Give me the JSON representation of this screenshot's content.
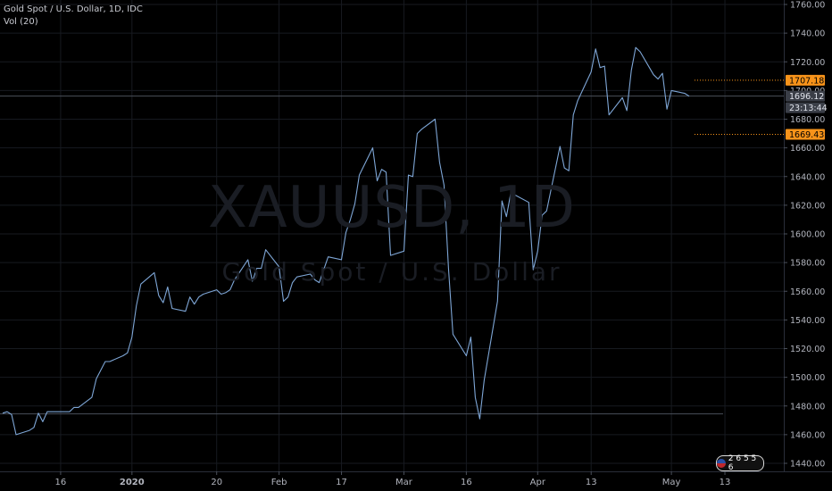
{
  "legend": {
    "title": "Gold Spot / U.S. Dollar, 1D, IDC",
    "indicator": "Vol (20)"
  },
  "watermark": {
    "symbol": "XAUUSD, 1D",
    "description": "Gold Spot / U.S. Dollar"
  },
  "colors": {
    "background": "#000000",
    "line": "#7ea6d6",
    "badge_orange": "#f7931a",
    "price_badge": "#3a3e47",
    "grid": "#171a20"
  },
  "chart_data": {
    "type": "line",
    "title": "Gold Spot / U.S. Dollar, 1D, IDC",
    "xlabel": "",
    "ylabel": "",
    "ylim": [
      1430,
      1765
    ],
    "y_ticks": [
      1440,
      1460,
      1480,
      1500,
      1520,
      1540,
      1560,
      1580,
      1600,
      1620,
      1640,
      1660,
      1680,
      1700,
      1720,
      1740,
      1760
    ],
    "y_tick_labels": [
      "1440.00",
      "1460.00",
      "1480.00",
      "1500.00",
      "1520.00",
      "1540.00",
      "1560.00",
      "1580.00",
      "1600.00",
      "1620.00",
      "1640.00",
      "1660.00",
      "1680.00",
      "1700.00",
      "1720.00",
      "1740.00",
      "1760.00"
    ],
    "x_tick_labels": [
      {
        "label": "16",
        "date": "2019-12-16"
      },
      {
        "label": "2020",
        "date": "2020-01-01"
      },
      {
        "label": "20",
        "date": "2020-01-20"
      },
      {
        "label": "Feb",
        "date": "2020-02-03"
      },
      {
        "label": "17",
        "date": "2020-02-17"
      },
      {
        "label": "Mar",
        "date": "2020-03-02"
      },
      {
        "label": "16",
        "date": "2020-03-16"
      },
      {
        "label": "Apr",
        "date": "2020-04-01"
      },
      {
        "label": "13",
        "date": "2020-04-13"
      },
      {
        "label": "May",
        "date": "2020-05-01"
      },
      {
        "label": "13",
        "date": "2020-05-13"
      }
    ],
    "xlim": [
      "2019-12-03",
      "2020-05-18"
    ],
    "grid": true,
    "legend": "top-left",
    "series": [
      {
        "values": [
          [
            "2019-12-03",
            1475
          ],
          [
            "2019-12-04",
            1476
          ],
          [
            "2019-12-05",
            1474
          ],
          [
            "2019-12-06",
            1460
          ],
          [
            "2019-12-09",
            1463
          ],
          [
            "2019-12-10",
            1465
          ],
          [
            "2019-12-11",
            1475
          ],
          [
            "2019-12-12",
            1469
          ],
          [
            "2019-12-13",
            1476
          ],
          [
            "2019-12-16",
            1476
          ],
          [
            "2019-12-17",
            1476
          ],
          [
            "2019-12-18",
            1476
          ],
          [
            "2019-12-19",
            1479
          ],
          [
            "2019-12-20",
            1479
          ],
          [
            "2019-12-23",
            1486
          ],
          [
            "2019-12-24",
            1499
          ],
          [
            "2019-12-26",
            1511
          ],
          [
            "2019-12-27",
            1511
          ],
          [
            "2019-12-30",
            1515
          ],
          [
            "2019-12-31",
            1517
          ],
          [
            "2020-01-01",
            1528
          ],
          [
            "2020-01-02",
            1550
          ],
          [
            "2020-01-03",
            1565
          ],
          [
            "2020-01-06",
            1573
          ],
          [
            "2020-01-07",
            1557
          ],
          [
            "2020-01-08",
            1552
          ],
          [
            "2020-01-09",
            1563
          ],
          [
            "2020-01-10",
            1548
          ],
          [
            "2020-01-13",
            1546
          ],
          [
            "2020-01-14",
            1556
          ],
          [
            "2020-01-15",
            1551
          ],
          [
            "2020-01-16",
            1556
          ],
          [
            "2020-01-17",
            1558
          ],
          [
            "2020-01-20",
            1561
          ],
          [
            "2020-01-21",
            1558
          ],
          [
            "2020-01-22",
            1559
          ],
          [
            "2020-01-23",
            1561
          ],
          [
            "2020-01-24",
            1568
          ],
          [
            "2020-01-27",
            1582
          ],
          [
            "2020-01-28",
            1567
          ],
          [
            "2020-01-29",
            1576
          ],
          [
            "2020-01-30",
            1576
          ],
          [
            "2020-01-31",
            1589
          ],
          [
            "2020-02-03",
            1577
          ],
          [
            "2020-02-04",
            1553
          ],
          [
            "2020-02-05",
            1556
          ],
          [
            "2020-02-06",
            1566
          ],
          [
            "2020-02-07",
            1570
          ],
          [
            "2020-02-10",
            1572
          ],
          [
            "2020-02-11",
            1568
          ],
          [
            "2020-02-12",
            1566
          ],
          [
            "2020-02-13",
            1575
          ],
          [
            "2020-02-14",
            1584
          ],
          [
            "2020-02-17",
            1582
          ],
          [
            "2020-02-18",
            1601
          ],
          [
            "2020-02-19",
            1610
          ],
          [
            "2020-02-20",
            1621
          ],
          [
            "2020-02-21",
            1641
          ],
          [
            "2020-02-24",
            1660
          ],
          [
            "2020-02-25",
            1637
          ],
          [
            "2020-02-26",
            1645
          ],
          [
            "2020-02-27",
            1643
          ],
          [
            "2020-02-28",
            1585
          ],
          [
            "2020-03-02",
            1588
          ],
          [
            "2020-03-03",
            1641
          ],
          [
            "2020-03-04",
            1640
          ],
          [
            "2020-03-05",
            1670
          ],
          [
            "2020-03-06",
            1673
          ],
          [
            "2020-03-09",
            1680
          ],
          [
            "2020-03-10",
            1650
          ],
          [
            "2020-03-11",
            1634
          ],
          [
            "2020-03-12",
            1576
          ],
          [
            "2020-03-13",
            1530
          ],
          [
            "2020-03-16",
            1515
          ],
          [
            "2020-03-17",
            1528
          ],
          [
            "2020-03-18",
            1486
          ],
          [
            "2020-03-19",
            1471
          ],
          [
            "2020-03-20",
            1498
          ],
          [
            "2020-03-23",
            1553
          ],
          [
            "2020-03-24",
            1623
          ],
          [
            "2020-03-25",
            1612
          ],
          [
            "2020-03-26",
            1629
          ],
          [
            "2020-03-27",
            1627
          ],
          [
            "2020-03-30",
            1622
          ],
          [
            "2020-03-31",
            1575
          ],
          [
            "2020-04-01",
            1588
          ],
          [
            "2020-04-02",
            1613
          ],
          [
            "2020-04-03",
            1616
          ],
          [
            "2020-04-06",
            1661
          ],
          [
            "2020-04-07",
            1646
          ],
          [
            "2020-04-08",
            1644
          ],
          [
            "2020-04-09",
            1683
          ],
          [
            "2020-04-10",
            1693
          ],
          [
            "2020-04-13",
            1713
          ],
          [
            "2020-04-14",
            1729
          ],
          [
            "2020-04-15",
            1716
          ],
          [
            "2020-04-16",
            1717
          ],
          [
            "2020-04-17",
            1683
          ],
          [
            "2020-04-20",
            1695
          ],
          [
            "2020-04-21",
            1686
          ],
          [
            "2020-04-22",
            1714
          ],
          [
            "2020-04-23",
            1730
          ],
          [
            "2020-04-24",
            1727
          ],
          [
            "2020-04-27",
            1711
          ],
          [
            "2020-04-28",
            1708
          ],
          [
            "2020-04-29",
            1712
          ],
          [
            "2020-04-30",
            1687
          ],
          [
            "2020-05-01",
            1700
          ],
          [
            "2020-05-04",
            1698
          ],
          [
            "2020-05-05",
            1696
          ]
        ]
      }
    ],
    "horizontal_lines": [
      {
        "value": 1696.12,
        "style": "solid",
        "color": "#4a4f5a"
      },
      {
        "value": 1474.5,
        "style": "solid",
        "color": "#4a4f5a"
      },
      {
        "value": 1707.18,
        "style": "dotted",
        "color": "#f7931a"
      },
      {
        "value": 1669.43,
        "style": "dotted",
        "color": "#f7931a"
      }
    ],
    "price_labels": [
      {
        "value": 1707.18,
        "text": "1707.18",
        "style": "orange"
      },
      {
        "value": 1696.12,
        "text": "1696.12",
        "style": "current"
      },
      {
        "value": 1693.5,
        "text": "23:13:44",
        "style": "countdown"
      },
      {
        "value": 1669.43,
        "text": "1669.43",
        "style": "orange"
      }
    ]
  },
  "footer": {
    "logo_text": "2 6 5 5 6"
  }
}
